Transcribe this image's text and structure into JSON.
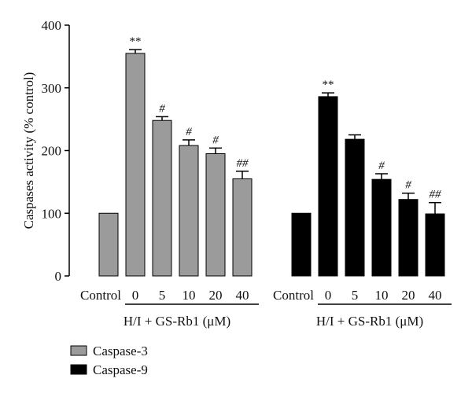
{
  "chart_data": {
    "type": "bar",
    "ylabel": "Caspases activity (% control)",
    "ylim": [
      0,
      400
    ],
    "yticks": [
      0,
      100,
      200,
      300,
      400
    ],
    "categories": [
      "Control",
      "0",
      "5",
      "10",
      "20",
      "40"
    ],
    "group_caption": "H/I + GS-Rb1 (μM)",
    "series": [
      {
        "name": "Caspase-3",
        "color": "#9b9b9b",
        "values": [
          100,
          355,
          248,
          208,
          195,
          155
        ],
        "errors": [
          0,
          6,
          6,
          9,
          9,
          12
        ],
        "annotations": [
          "",
          "**",
          "#",
          "#",
          "#",
          "##"
        ]
      },
      {
        "name": "Caspase-9",
        "color": "#000000",
        "values": [
          100,
          286,
          218,
          154,
          122,
          99
        ],
        "errors": [
          0,
          6,
          7,
          9,
          10,
          18
        ],
        "annotations": [
          "",
          "**",
          "",
          "#",
          "#",
          "##"
        ]
      }
    ],
    "legend_position": "bottom-left"
  }
}
